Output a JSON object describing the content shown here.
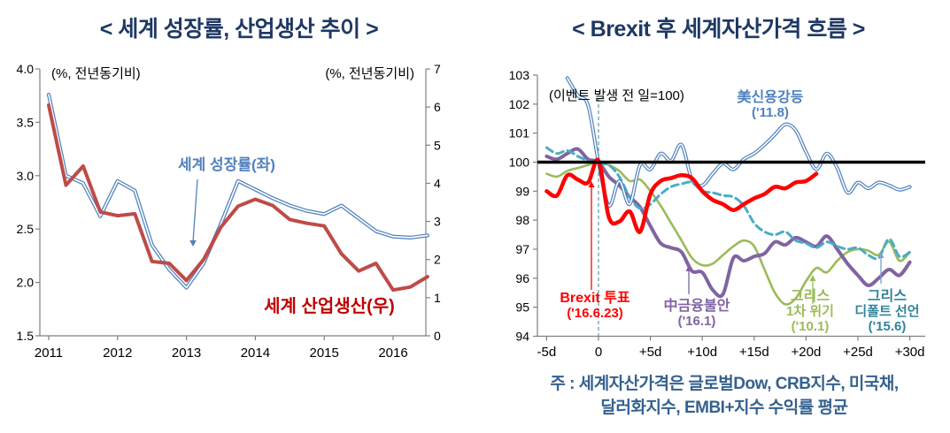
{
  "page": {
    "background": "#FFFFFF"
  },
  "chart_data": [
    {
      "type": "line",
      "title": "< 세계 성장률, 산업생산 추이 >",
      "title_color": "#1F3864",
      "left_axis_note": "(%, 전년동기비)",
      "right_axis_note": "(%, 전년동기비)",
      "x_tick_labels": [
        "2011",
        "2012",
        "2013",
        "2014",
        "2015",
        "2016"
      ],
      "x_years": [
        2011.0,
        2011.25,
        2011.5,
        2011.75,
        2012.0,
        2012.25,
        2012.5,
        2012.75,
        2013.0,
        2013.25,
        2013.5,
        2013.75,
        2014.0,
        2014.25,
        2014.5,
        2014.75,
        2015.0,
        2015.25,
        2015.5,
        2015.75,
        2016.0,
        2016.25,
        2016.5
      ],
      "left_ylim": [
        1.5,
        4.0
      ],
      "right_ylim": [
        0,
        7
      ],
      "left_ytick_labels": [
        "4.0",
        "3.5",
        "3.0",
        "2.5",
        "2.0",
        "1.5"
      ],
      "right_ytick_labels": [
        "7",
        "6",
        "5",
        "4",
        "3",
        "2",
        "1",
        "0"
      ],
      "grid": false,
      "series": [
        {
          "name": "세계 성장률(좌)",
          "axis": "left",
          "color": "#4F81BD",
          "label_color": "#4F81BD",
          "style": "double",
          "width": 4.2,
          "values": [
            3.76,
            3.0,
            2.93,
            2.62,
            2.95,
            2.86,
            2.35,
            2.12,
            1.95,
            2.18,
            2.55,
            2.95,
            2.87,
            2.79,
            2.72,
            2.67,
            2.64,
            2.72,
            2.6,
            2.48,
            2.43,
            2.42,
            2.44
          ]
        },
        {
          "name": "세계 산업생산(우)",
          "axis": "right",
          "color": "#BE4B48",
          "label_color": "#C00000",
          "style": "solid",
          "width": 4,
          "values": [
            6.05,
            3.95,
            4.45,
            3.25,
            3.15,
            3.2,
            1.95,
            1.9,
            1.45,
            2.0,
            2.85,
            3.4,
            3.58,
            3.42,
            3.05,
            2.95,
            2.88,
            2.15,
            1.7,
            1.9,
            1.2,
            1.28,
            1.55
          ]
        }
      ]
    },
    {
      "type": "line",
      "title": "< Brexit 후 세계자산가격 흐름 >",
      "title_color": "#1F3864",
      "axis_note": "(이벤트 발생 전 일=100)",
      "x_tick_labels": [
        "-5d",
        "0",
        "+5d",
        "+10d",
        "+15d",
        "+20d",
        "+25d",
        "+30d"
      ],
      "x_tick_days": [
        -5,
        0,
        5,
        10,
        15,
        20,
        25,
        30
      ],
      "days": [
        -5,
        -4,
        -3,
        -2,
        -1,
        0,
        1,
        2,
        3,
        4,
        5,
        6,
        7,
        8,
        9,
        10,
        11,
        12,
        13,
        14,
        15,
        16,
        17,
        18,
        19,
        20,
        21,
        22,
        23,
        24,
        25,
        26,
        27,
        28,
        29,
        30
      ],
      "ylim": [
        94,
        103
      ],
      "ytick_labels": [
        "103",
        "102",
        "101",
        "100",
        "99",
        "98",
        "97",
        "96",
        "95",
        "94"
      ],
      "baseline_value": 100,
      "event_line_day": 0,
      "grid": false,
      "series": [
        {
          "name": "그리스 1차 위기('10.1)",
          "color": "#9BBB59",
          "style": "solid",
          "width": 2.6,
          "values": [
            99.6,
            99.5,
            99.7,
            99.8,
            99.9,
            100.0,
            99.9,
            99.7,
            99.35,
            99.4,
            99.0,
            98.5,
            97.9,
            97.3,
            96.7,
            96.45,
            96.5,
            96.8,
            97.1,
            97.3,
            97.1,
            96.3,
            95.5,
            95.1,
            95.3,
            95.9,
            96.35,
            96.2,
            96.6,
            96.9,
            97.0,
            96.95,
            96.8,
            97.25,
            96.6,
            96.9
          ]
        },
        {
          "name": "中금융불안('16.1)",
          "color": "#8064A2",
          "style": "solid",
          "width": 4,
          "values": [
            100.2,
            100.1,
            100.3,
            100.45,
            100.1,
            100.0,
            99.5,
            99.2,
            98.8,
            98.45,
            97.8,
            97.2,
            97.05,
            96.9,
            96.25,
            96.2,
            95.6,
            95.45,
            96.7,
            96.6,
            96.75,
            96.85,
            97.25,
            97.15,
            97.4,
            97.25,
            97.1,
            97.45,
            97.0,
            96.5,
            96.1,
            95.75,
            96.0,
            96.3,
            96.1,
            96.55
          ]
        },
        {
          "name": "그리스 디폴트 선언('15.6)",
          "color": "#4BACC6",
          "style": "dashed",
          "width": 3,
          "values": [
            100.5,
            100.3,
            100.4,
            100.2,
            100.05,
            99.95,
            99.9,
            99.5,
            98.8,
            98.4,
            98.55,
            98.9,
            99.15,
            99.25,
            99.3,
            99.0,
            98.95,
            98.85,
            98.8,
            98.5,
            97.9,
            97.6,
            97.5,
            97.6,
            97.3,
            97.2,
            97.05,
            97.25,
            97.1,
            97.0,
            97.05,
            96.8,
            96.7,
            97.35,
            96.75,
            96.9
          ]
        },
        {
          "name": "美신용강등('11.8)",
          "color": "#4F81BD",
          "style": "double",
          "width": 4,
          "values": [
            null,
            null,
            102.9,
            102.3,
            101.95,
            100.0,
            98.5,
            99.35,
            98.55,
            99.9,
            99.75,
            100.3,
            100.05,
            100.6,
            99.4,
            99.2,
            99.6,
            99.95,
            99.75,
            100.1,
            100.3,
            100.6,
            100.95,
            101.3,
            101.1,
            100.35,
            99.75,
            100.3,
            99.8,
            98.95,
            99.3,
            99.1,
            99.3,
            99.2,
            99.05,
            99.15
          ]
        },
        {
          "name": "Brexit 투표('16.6.23)",
          "color": "#FF0000",
          "style": "solid",
          "width": 4.5,
          "values": [
            99.0,
            98.85,
            99.55,
            99.4,
            99.3,
            100.05,
            98.1,
            97.95,
            98.3,
            97.6,
            98.9,
            99.35,
            99.45,
            99.55,
            99.45,
            99.0,
            98.7,
            98.55,
            98.35,
            98.55,
            98.75,
            98.9,
            99.15,
            99.1,
            99.3,
            99.35,
            99.6,
            null,
            null,
            null,
            null,
            null,
            null,
            null,
            null,
            null
          ]
        }
      ],
      "annotations": {
        "us": {
          "line1": "美신용강등",
          "line2": "('11.8)",
          "color": "#4F81BD"
        },
        "brexit": {
          "line1": "Brexit 투표",
          "line2": "('16.6.23)",
          "color": "#FF0000"
        },
        "china": {
          "line1": "中금융불안",
          "line2": "('16.1)",
          "color": "#8064A2"
        },
        "greece1": {
          "line1": "그리스",
          "line2": "1차 위기",
          "line3": "('10.1)",
          "color": "#9BBB59"
        },
        "greece2": {
          "line1": "그리스",
          "line2": "디폴트 선언",
          "line3": "('15.6)",
          "color": "#31849B"
        }
      }
    }
  ],
  "footnote": {
    "line1": "주 : 세계자산가격은  글로벌Dow, CRB지수,  미국채,",
    "line2": "달러화지수, EMBI+지수  수익률  평균",
    "color": "#35618E"
  }
}
